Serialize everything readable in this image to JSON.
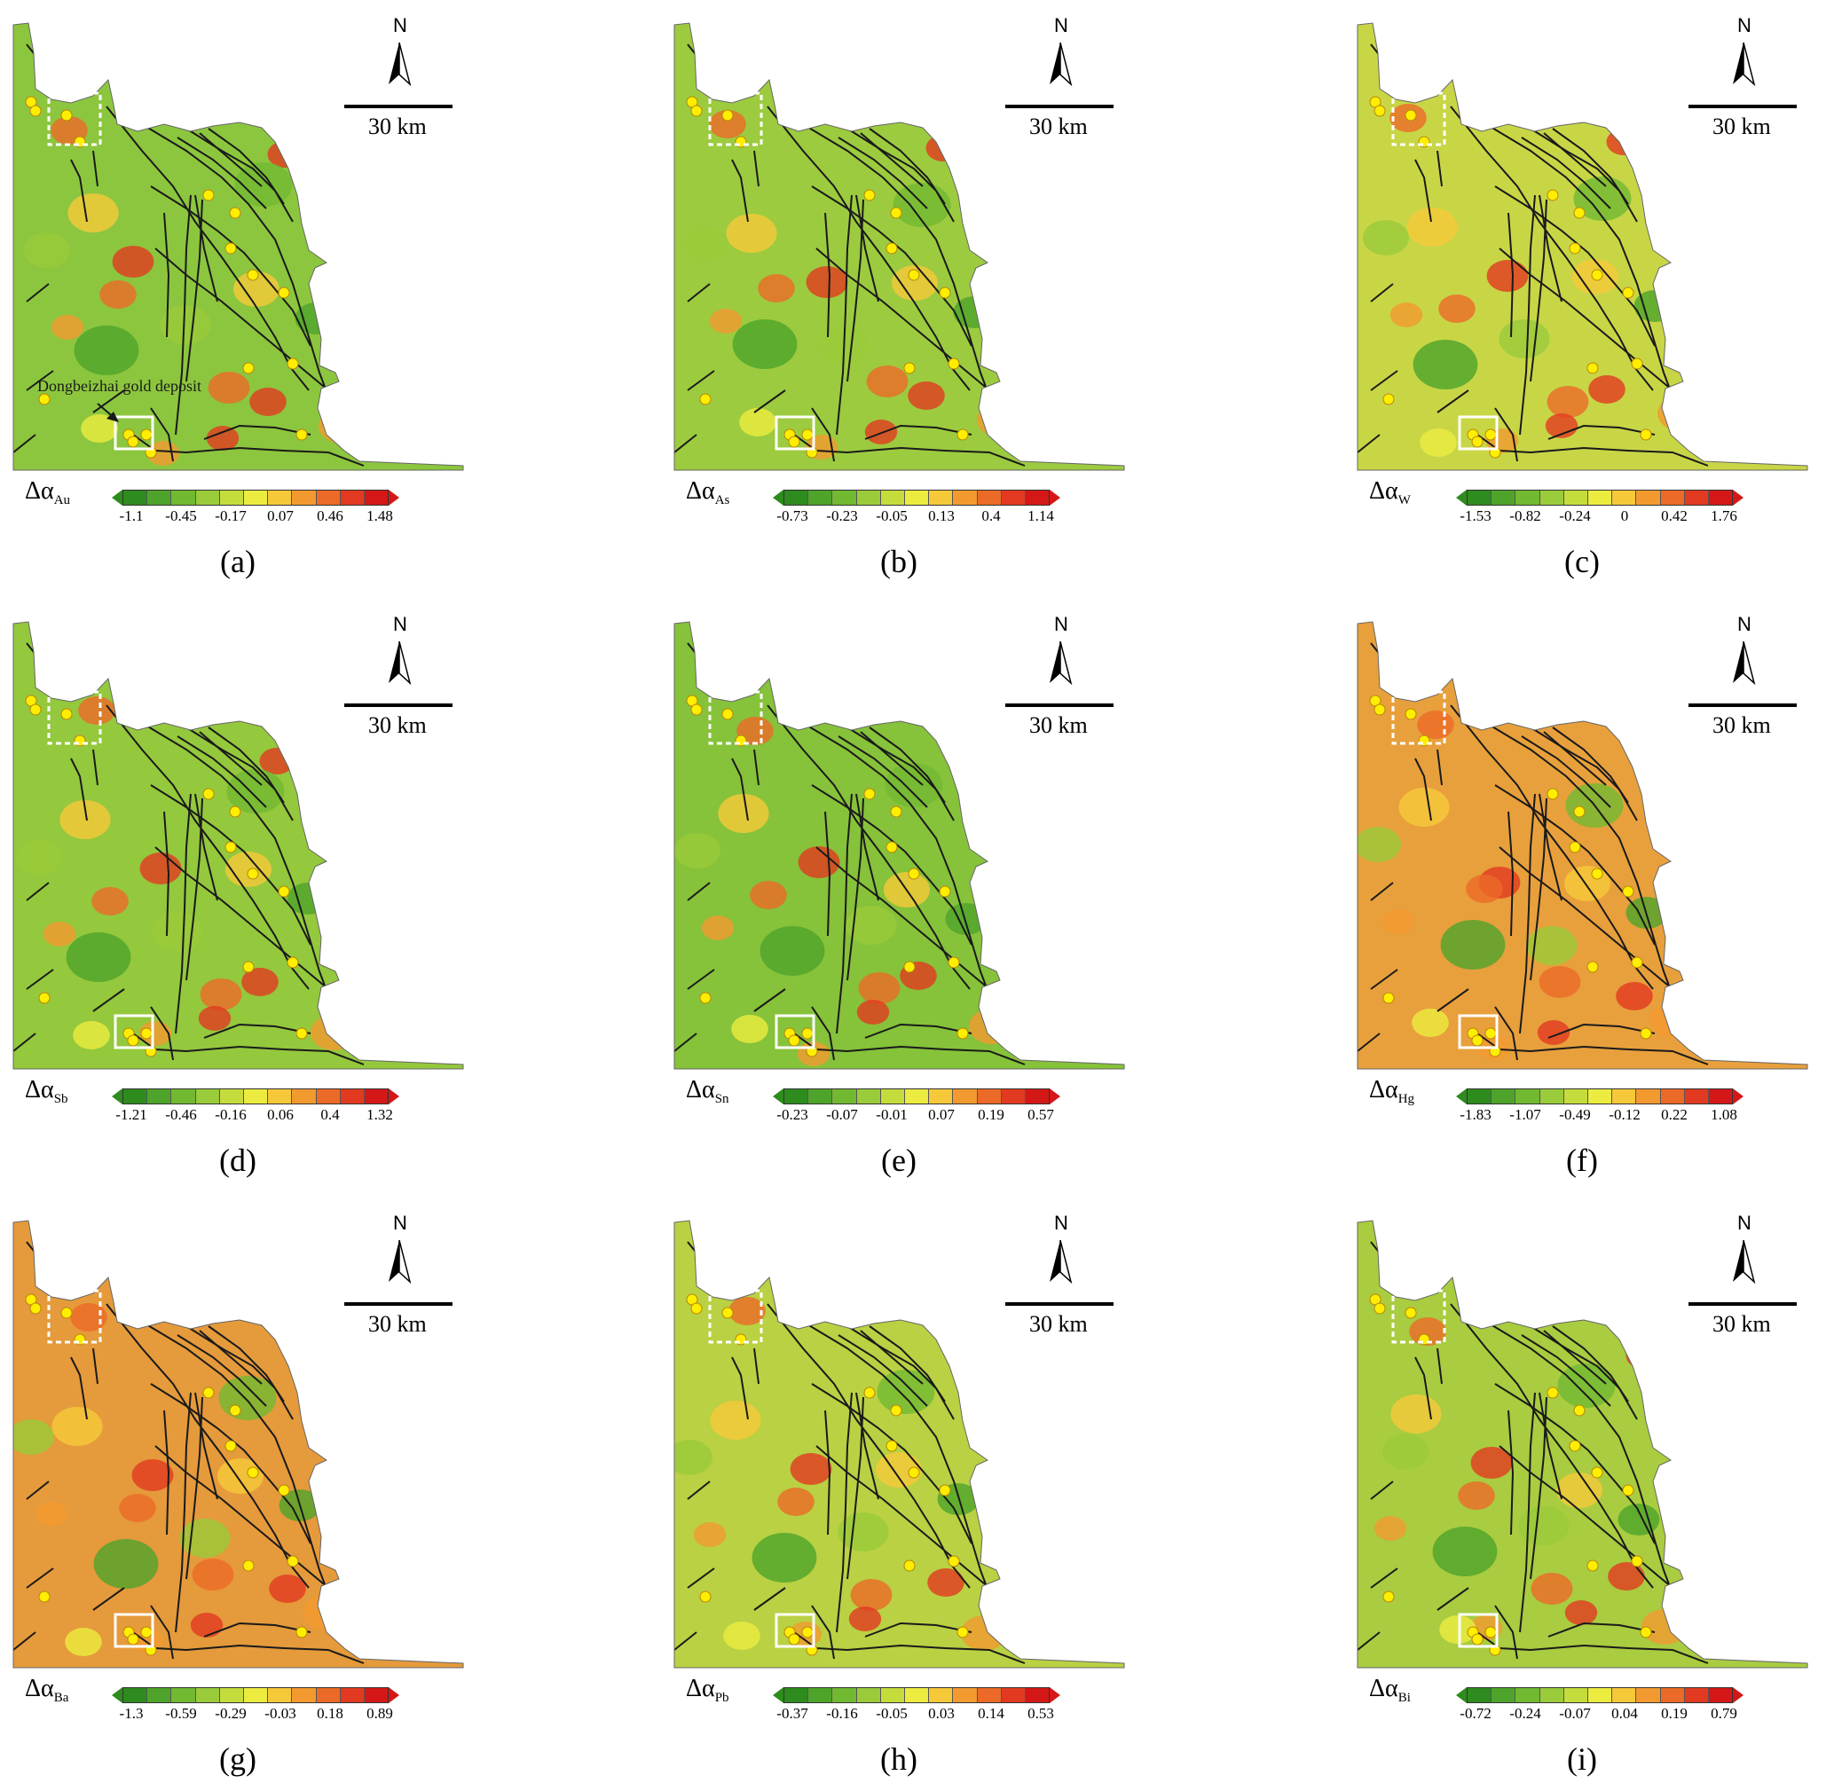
{
  "north_label": "N",
  "scale_text": "30 km",
  "legend_prefix": "Δα",
  "annotation": "Dongbeizhai gold deposit",
  "panels": [
    {
      "label": "(a)",
      "element": "Au",
      "ticks": [
        "-1.1",
        "-0.45",
        "-0.17",
        "0.07",
        "0.46",
        "1.48"
      ],
      "base": "#8cc63e"
    },
    {
      "label": "(b)",
      "element": "As",
      "ticks": [
        "-0.73",
        "-0.23",
        "-0.05",
        "0.13",
        "0.4",
        "1.14"
      ],
      "base": "#9ccb3f"
    },
    {
      "label": "(c)",
      "element": "W",
      "ticks": [
        "-1.53",
        "-0.82",
        "-0.24",
        "0",
        "0.42",
        "1.76"
      ],
      "base": "#c8d646"
    },
    {
      "label": "(d)",
      "element": "Sb",
      "ticks": [
        "-1.21",
        "-0.46",
        "-0.16",
        "0.06",
        "0.4",
        "1.32"
      ],
      "base": "#94c83d"
    },
    {
      "label": "(e)",
      "element": "Sn",
      "ticks": [
        "-0.23",
        "-0.07",
        "-0.01",
        "0.07",
        "0.19",
        "0.57"
      ],
      "base": "#86c23a"
    },
    {
      "label": "(f)",
      "element": "Hg",
      "ticks": [
        "-1.83",
        "-1.07",
        "-0.49",
        "-0.12",
        "0.22",
        "1.08"
      ],
      "base": "#e8a03c"
    },
    {
      "label": "(g)",
      "element": "Ba",
      "ticks": [
        "-1.3",
        "-0.59",
        "-0.29",
        "-0.03",
        "0.18",
        "0.89"
      ],
      "base": "#e59a3b"
    },
    {
      "label": "(h)",
      "element": "Pb",
      "ticks": [
        "-0.37",
        "-0.16",
        "-0.05",
        "0.03",
        "0.14",
        "0.53"
      ],
      "base": "#b9d143"
    },
    {
      "label": "(i)",
      "element": "Bi",
      "ticks": [
        "-0.72",
        "-0.24",
        "-0.07",
        "0.04",
        "0.19",
        "0.79"
      ],
      "base": "#a9cc40"
    }
  ],
  "ramp_colors": [
    "#2e8b1e",
    "#4ea42a",
    "#72b932",
    "#9acb3a",
    "#c6dc3c",
    "#ecec40",
    "#f6c93a",
    "#f29a30",
    "#ec6a28",
    "#e23a20",
    "#d41818"
  ]
}
